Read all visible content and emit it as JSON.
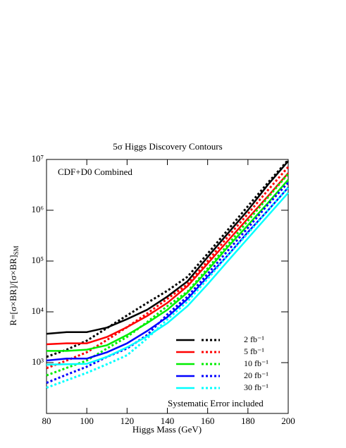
{
  "chart_data": {
    "type": "line",
    "title": "5σ Higgs Discovery Contours",
    "annotations": [
      "CDF+D0 Combined",
      "Systematic Error included"
    ],
    "x_label": "Higgs Mass (GeV)",
    "y_label": "R=[σ×BR]/[σ×BR]",
    "y_label_subscript": "SM",
    "x": [
      80,
      90,
      100,
      110,
      120,
      130,
      140,
      150,
      160,
      170,
      180,
      190,
      200
    ],
    "xlim": [
      80,
      200
    ],
    "xticks": [
      80,
      100,
      120,
      140,
      160,
      180,
      200
    ],
    "ylim": [
      100,
      10000000
    ],
    "log_y": true,
    "yticks": [
      {
        "value": 1000,
        "label": "10³"
      },
      {
        "value": 10000,
        "label": "10⁴"
      },
      {
        "value": 100000,
        "label": "10⁵"
      },
      {
        "value": 1000000,
        "label": "10⁶"
      },
      {
        "value": 10000000,
        "label": "10⁷"
      }
    ],
    "legend": "lower right",
    "series": [
      {
        "name": "2 fb⁻¹",
        "color": "#000000",
        "values": [
          3700,
          4000,
          4000,
          4900,
          7200,
          11000,
          20000,
          40000,
          120000,
          350000,
          1000000,
          3200000,
          9300000
        ],
        "values_dotted": [
          1300,
          1800,
          2700,
          4800,
          8500,
          15000,
          26000,
          49000,
          140000,
          410000,
          1200000,
          3500000,
          9800000
        ]
      },
      {
        "name": "5 fb⁻¹",
        "color": "#ff0000",
        "values": [
          2300,
          2400,
          2400,
          3200,
          5000,
          8300,
          15000,
          32000,
          89000,
          250000,
          690000,
          1900000,
          5400000
        ],
        "values_dotted": [
          780,
          1100,
          1600,
          2800,
          5000,
          9300,
          18000,
          35000,
          100000,
          300000,
          850000,
          2500000,
          7100000
        ]
      },
      {
        "name": "10 fb⁻¹",
        "color": "#00ee00",
        "values": [
          1700,
          1700,
          1800,
          2200,
          3500,
          6000,
          11000,
          24000,
          66000,
          190000,
          510000,
          1400000,
          4000000
        ],
        "values_dotted": [
          560,
          790,
          1100,
          1900,
          3200,
          6300,
          13000,
          25000,
          72000,
          210000,
          620000,
          1800000,
          5200000
        ]
      },
      {
        "name": "20 fb⁻¹",
        "color": "#0000ff",
        "values": [
          1100,
          1200,
          1200,
          1600,
          2400,
          4200,
          7900,
          18000,
          49000,
          130000,
          370000,
          1000000,
          2800000
        ],
        "values_dotted": [
          400,
          580,
          830,
          1300,
          1900,
          3500,
          8900,
          20000,
          56000,
          160000,
          450000,
          1300000,
          3500000
        ]
      },
      {
        "name": "30 fb⁻¹",
        "color": "#00ffff",
        "values": [
          910,
          930,
          950,
          1300,
          2000,
          3300,
          6000,
          13000,
          35000,
          100000,
          280000,
          790000,
          2200000
        ],
        "values_dotted": [
          320,
          450,
          630,
          930,
          1400,
          3000,
          7100,
          16000,
          45000,
          130000,
          350000,
          1000000,
          2800000
        ]
      }
    ]
  }
}
